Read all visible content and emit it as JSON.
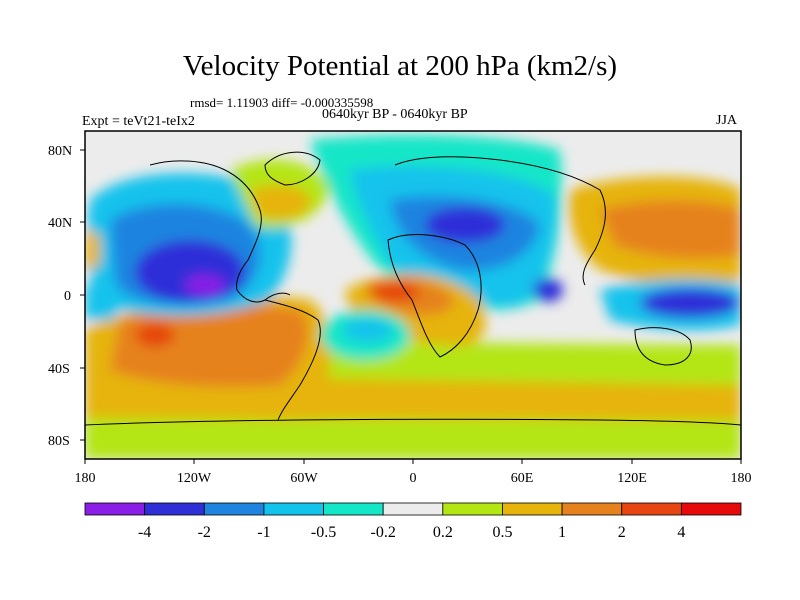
{
  "title": "Velocity Potential at 200 hPa (km2/s)",
  "stats": "rmsd= 1.11903 diff= -0.000335598",
  "period": "0640kyr BP - 0640kyr BP",
  "experiment": "Expt = teVt21-teIx2",
  "season": "JJA",
  "map": {
    "projection": "cylindrical equidistant",
    "lon_range": [
      -180,
      180
    ],
    "lat_range": [
      -90,
      90
    ],
    "lon_ticks": [
      "180",
      "120W",
      "60W",
      "0",
      "60E",
      "120E",
      "180"
    ],
    "lat_ticks": [
      "80N",
      "40N",
      "0",
      "40S",
      "80S"
    ],
    "coastlines": true
  },
  "colorbar": {
    "labels": [
      "-4",
      "-2",
      "-1",
      "-0.5",
      "-0.2",
      "0.2",
      "0.5",
      "1",
      "2",
      "4"
    ],
    "colors": [
      "#8a1ee6",
      "#2f2fd8",
      "#1e84e0",
      "#12c3ec",
      "#14e6c8",
      "#ececec",
      "#b4e614",
      "#e6b40a",
      "#e6821e",
      "#e6460f",
      "#e60a0a"
    ]
  }
}
